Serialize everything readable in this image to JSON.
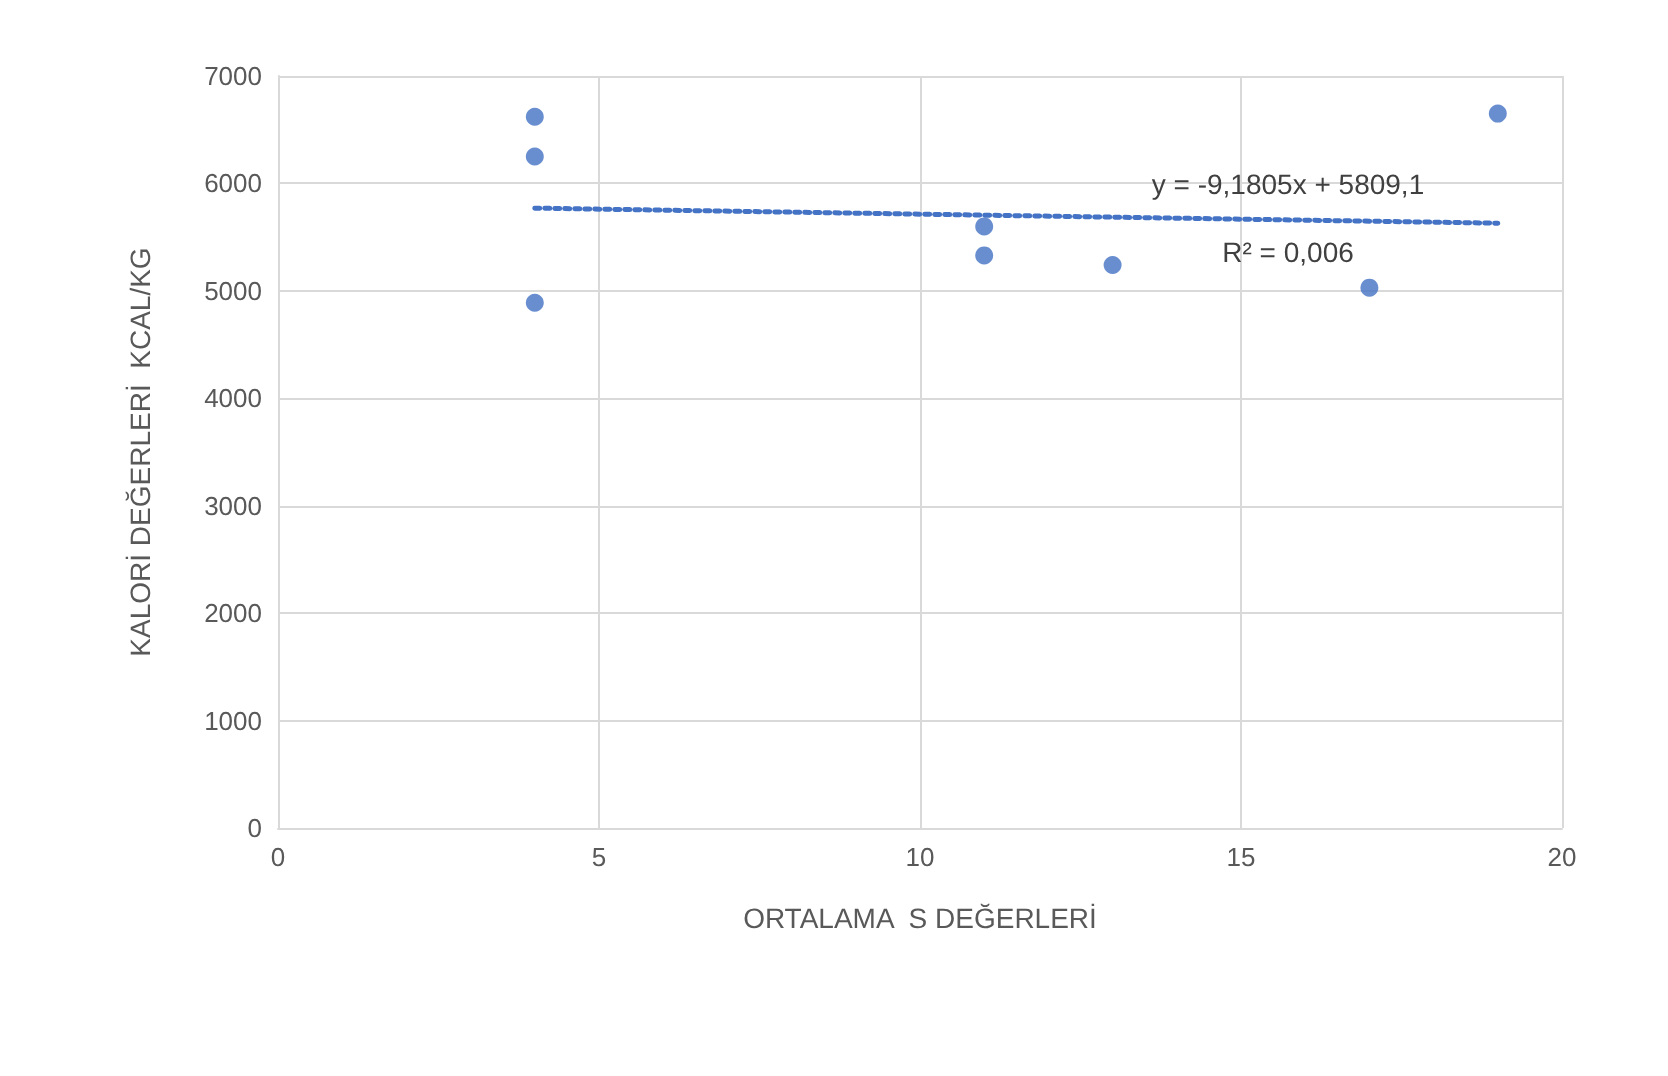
{
  "chart_data": {
    "type": "scatter",
    "xlabel": "ORTALAMA  S DEĞERLERİ",
    "ylabel": "KALORİ DEĞERLERİ  KCAL/KG",
    "xlim": [
      0,
      20
    ],
    "xticks": [
      0,
      5,
      10,
      15,
      20
    ],
    "ylim": [
      0,
      7000
    ],
    "yticks": [
      0,
      1000,
      2000,
      3000,
      4000,
      5000,
      6000,
      7000
    ],
    "grid": true,
    "marker": "circle",
    "series": [
      {
        "color": "#4472c4",
        "x": [
          4,
          4,
          4,
          11,
          11,
          13,
          17,
          19
        ],
        "values": [
          6620,
          6250,
          4890,
          5600,
          5330,
          5240,
          5030,
          6650
        ]
      },
      {
        "type": "line",
        "color": "#4472c4",
        "line_style": "dotted",
        "marker": "none",
        "x": [
          4,
          19
        ],
        "values": [
          5770,
          5630
        ]
      }
    ],
    "annotations": [
      "y = -9,1805x + 5809,1",
      "R² = 0,006"
    ]
  }
}
